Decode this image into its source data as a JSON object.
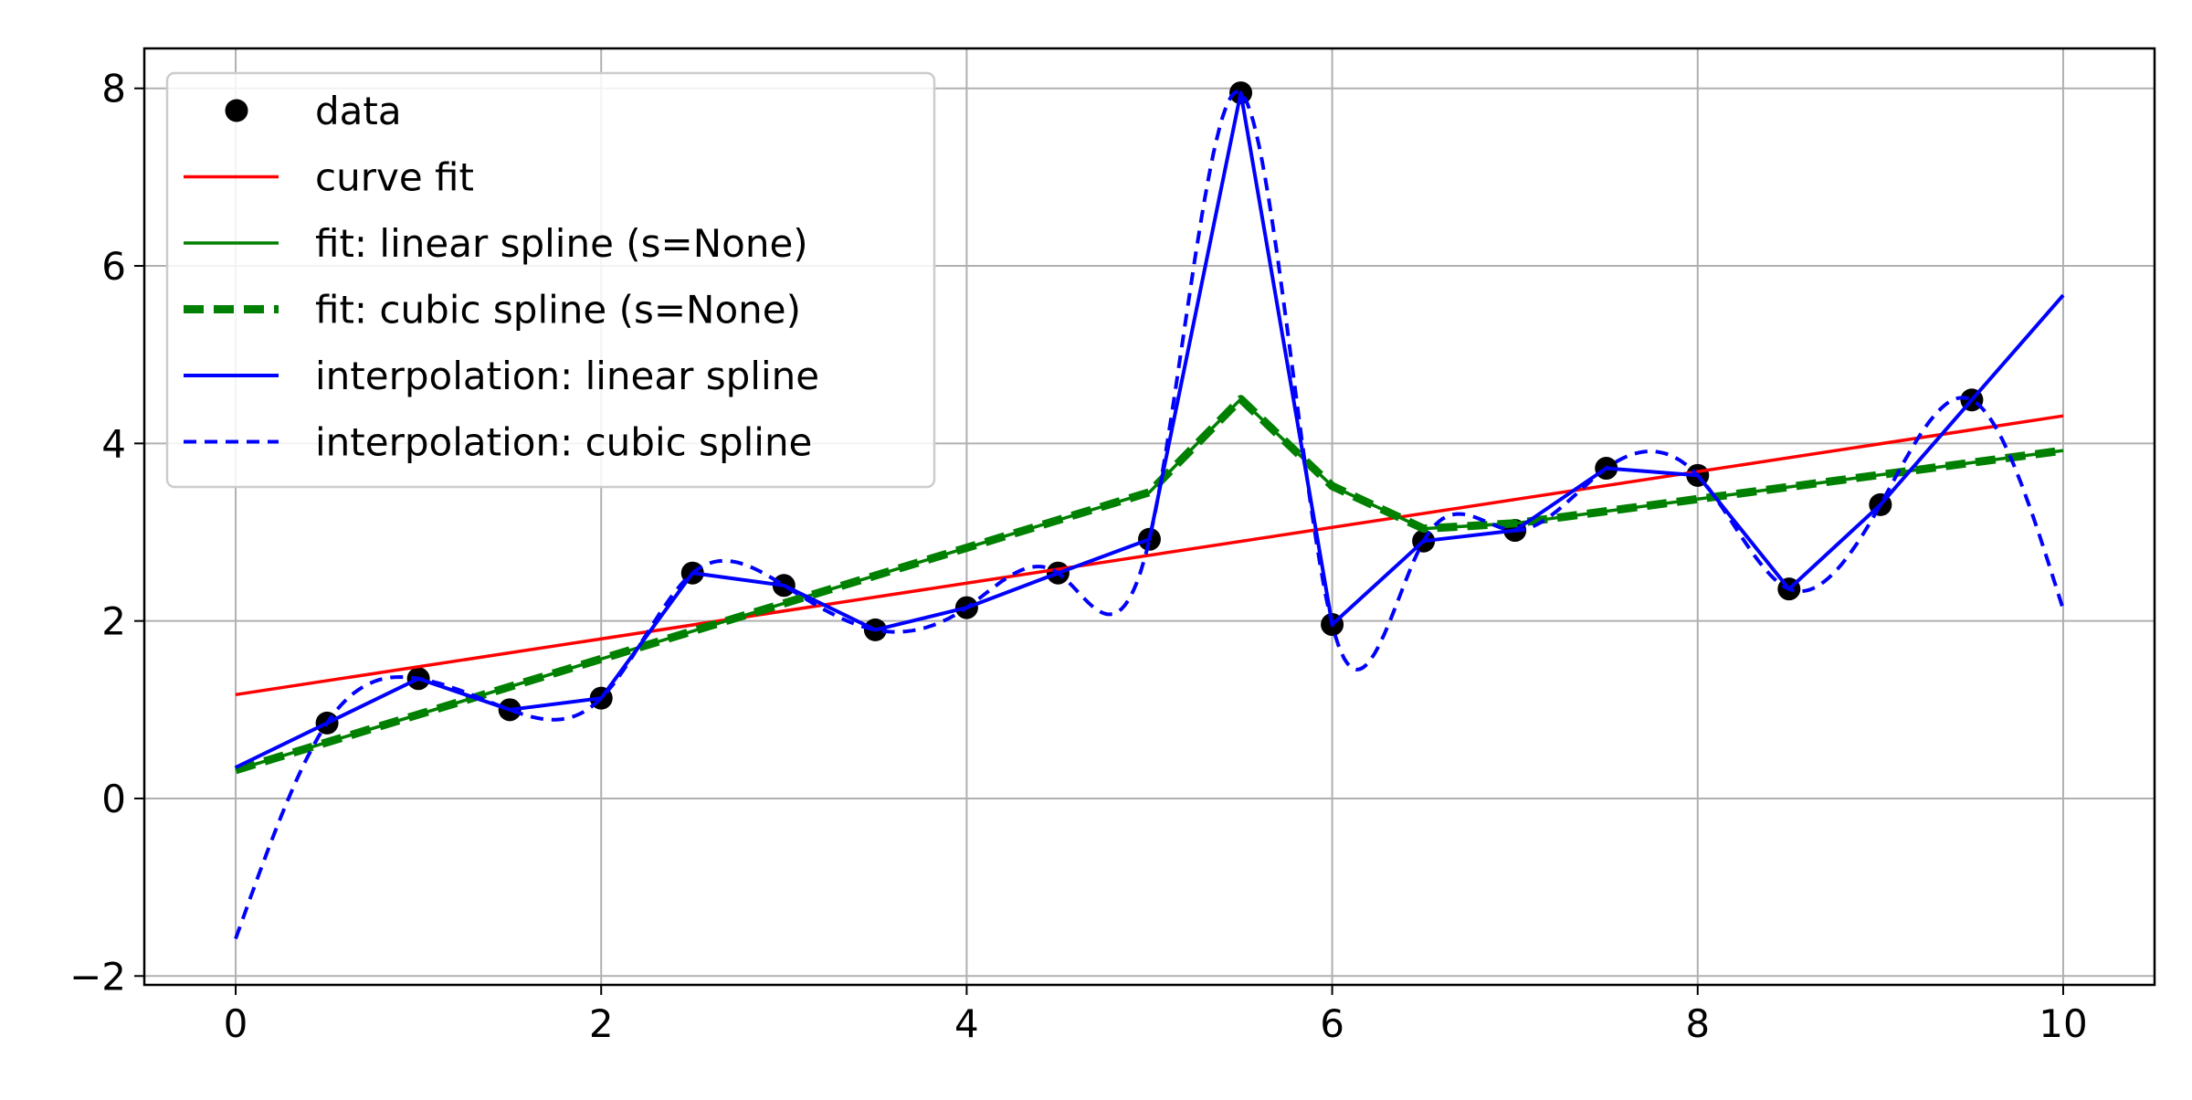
{
  "chart_data": {
    "type": "line",
    "title": "",
    "xlabel": "",
    "ylabel": "",
    "xlim": [
      -0.5,
      10.5
    ],
    "ylim": [
      -2.1,
      8.45
    ],
    "grid": true,
    "legend_position": "top-left",
    "xticks": [
      0,
      2,
      4,
      6,
      8,
      10
    ],
    "yticks": [
      -2,
      0,
      2,
      4,
      6,
      8
    ],
    "xtick_labels": [
      "0",
      "2",
      "4",
      "6",
      "8",
      "10"
    ],
    "ytick_labels": [
      "−2",
      "0",
      "2",
      "4",
      "6",
      "8"
    ],
    "series": [
      {
        "name": "data",
        "kind": "scatter",
        "color": "#000000",
        "x": [
          0.5,
          1.0,
          1.5,
          2.0,
          2.5,
          3.0,
          3.5,
          4.0,
          4.5,
          5.0,
          5.5,
          6.0,
          6.5,
          7.0,
          7.5,
          8.0,
          8.5,
          9.0,
          9.5
        ],
        "y": [
          0.85,
          1.35,
          1.0,
          1.13,
          2.54,
          2.4,
          1.9,
          2.15,
          2.54,
          2.92,
          7.95,
          1.96,
          2.9,
          3.02,
          3.72,
          3.64,
          2.36,
          3.31,
          4.49
        ]
      },
      {
        "name": "curve fit",
        "kind": "line",
        "color": "#ff0000",
        "dash": "",
        "width": 3.5,
        "x": [
          0,
          10
        ],
        "y": [
          1.17,
          4.31
        ]
      },
      {
        "name": "fit: linear spline (s=None)",
        "kind": "line",
        "color": "#008000",
        "dash": "",
        "width": 3.5,
        "x": [
          0,
          5.0,
          5.5,
          6.0,
          6.5,
          7.0,
          10
        ],
        "y": [
          0.32,
          3.45,
          4.5,
          3.52,
          3.04,
          3.1,
          3.92
        ]
      },
      {
        "name": "fit: cubic spline (s=None)",
        "kind": "line",
        "color": "#008000",
        "dash": "22,11",
        "width": 9,
        "x": [
          0,
          5.0,
          5.5,
          6.0,
          6.5,
          7.0,
          10
        ],
        "y": [
          0.32,
          3.45,
          4.5,
          3.52,
          3.04,
          3.1,
          3.92
        ]
      },
      {
        "name": "interpolation: linear spline",
        "kind": "line",
        "color": "#0000ff",
        "dash": "",
        "width": 4,
        "x": [
          0,
          0.5,
          1.0,
          1.5,
          2.0,
          2.5,
          3.0,
          3.5,
          4.0,
          4.5,
          5.0,
          5.5,
          6.0,
          6.5,
          7.0,
          7.5,
          8.0,
          8.5,
          9.0,
          9.5,
          10
        ],
        "y": [
          0.35,
          0.85,
          1.35,
          1.0,
          1.13,
          2.54,
          2.4,
          1.9,
          2.15,
          2.54,
          2.92,
          7.95,
          1.96,
          2.9,
          3.02,
          3.72,
          3.64,
          2.36,
          3.31,
          4.49,
          5.67
        ]
      },
      {
        "name": "interpolation: cubic spline",
        "kind": "spline",
        "color": "#0000ff",
        "dash": "14,9",
        "width": 4,
        "x": [
          0,
          0.5,
          1.0,
          1.5,
          2.0,
          2.5,
          3.0,
          3.5,
          4.0,
          4.5,
          5.0,
          5.5,
          6.0,
          6.5,
          7.0,
          7.5,
          8.0,
          8.5,
          9.0,
          9.5,
          10
        ],
        "y": [
          -1.58,
          0.85,
          1.35,
          1.0,
          1.13,
          2.54,
          2.4,
          1.9,
          2.15,
          2.54,
          2.92,
          7.95,
          1.96,
          2.9,
          3.02,
          3.72,
          3.64,
          2.36,
          3.31,
          4.49,
          2.13
        ]
      }
    ]
  }
}
